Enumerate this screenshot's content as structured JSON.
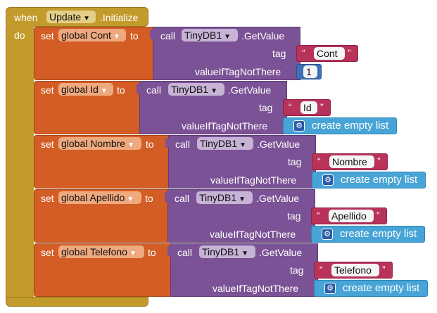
{
  "event": {
    "when_label": "when",
    "component": "Update",
    "event_name": ".Initialize",
    "do_label": "do"
  },
  "labels": {
    "set": "set",
    "to": "to",
    "call": "call",
    "method": ".GetValue",
    "tag": "tag",
    "value_if_not_there": "valueIfTagNotThere",
    "quote_open": "“",
    "quote_close": "”",
    "create_empty_list": "create empty list"
  },
  "db_component": "TinyDB1",
  "rows": [
    {
      "variable": "global Cont",
      "tag_value": "Cont",
      "default_value": "1"
    },
    {
      "variable": "global Id",
      "tag_value": "Id",
      "default_value": "create empty list"
    },
    {
      "variable": "global Nombre",
      "tag_value": "Nombre",
      "default_value": "create empty list"
    },
    {
      "variable": "global Apellido",
      "tag_value": "Apellido",
      "default_value": "create empty list"
    },
    {
      "variable": "global Telefono",
      "tag_value": "Telefono",
      "default_value": "create empty list"
    }
  ],
  "icons": {
    "dropdown": "chevron-down-icon",
    "mutator": "gear-icon"
  },
  "colors": {
    "event": "#c29b2c",
    "set": "#d35d24",
    "call": "#7b5295",
    "text": "#b8325a",
    "number": "#3f6fb5",
    "list": "#47a4d6"
  }
}
